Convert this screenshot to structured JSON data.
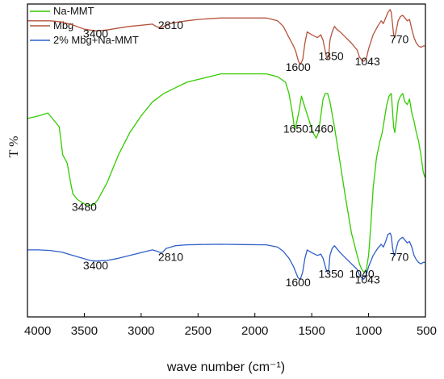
{
  "chart_data": {
    "type": "line",
    "xlabel": "wave number (cm⁻¹)",
    "ylabel": "T %",
    "xlim": [
      4000,
      500
    ],
    "x_reversed": true,
    "x_ticks": [
      4000,
      3500,
      3000,
      2500,
      2000,
      1500,
      1000,
      500
    ],
    "y_ticks_shown": false,
    "grid": false,
    "legend_position": "top-left",
    "series": [
      {
        "name": "Na-MMT",
        "color": "#33cc00",
        "points": [
          [
            4000,
            71
          ],
          [
            3900,
            72
          ],
          [
            3820,
            73
          ],
          [
            3760,
            70
          ],
          [
            3720,
            68
          ],
          [
            3690,
            58
          ],
          [
            3650,
            55
          ],
          [
            3620,
            48
          ],
          [
            3600,
            44
          ],
          [
            3560,
            42
          ],
          [
            3520,
            41
          ],
          [
            3480,
            40
          ],
          [
            3420,
            40
          ],
          [
            3380,
            42
          ],
          [
            3300,
            48
          ],
          [
            3200,
            58
          ],
          [
            3100,
            66
          ],
          [
            3000,
            72
          ],
          [
            2900,
            77
          ],
          [
            2800,
            80
          ],
          [
            2700,
            82
          ],
          [
            2600,
            84
          ],
          [
            2500,
            85
          ],
          [
            2400,
            86
          ],
          [
            2300,
            87
          ],
          [
            2200,
            87
          ],
          [
            2100,
            87
          ],
          [
            2000,
            87
          ],
          [
            1900,
            87
          ],
          [
            1800,
            86
          ],
          [
            1730,
            84
          ],
          [
            1700,
            80
          ],
          [
            1670,
            73
          ],
          [
            1650,
            67
          ],
          [
            1630,
            70
          ],
          [
            1610,
            74
          ],
          [
            1590,
            79
          ],
          [
            1560,
            75
          ],
          [
            1520,
            70
          ],
          [
            1490,
            66
          ],
          [
            1460,
            64
          ],
          [
            1440,
            66
          ],
          [
            1420,
            72
          ],
          [
            1400,
            78
          ],
          [
            1380,
            80
          ],
          [
            1360,
            80
          ],
          [
            1340,
            77
          ],
          [
            1300,
            68
          ],
          [
            1250,
            55
          ],
          [
            1200,
            42
          ],
          [
            1150,
            30
          ],
          [
            1100,
            22
          ],
          [
            1080,
            19
          ],
          [
            1060,
            17
          ],
          [
            1040,
            16
          ],
          [
            1020,
            17
          ],
          [
            1000,
            22
          ],
          [
            980,
            33
          ],
          [
            960,
            46
          ],
          [
            930,
            57
          ],
          [
            900,
            63
          ],
          [
            880,
            66
          ],
          [
            860,
            71
          ],
          [
            840,
            76
          ],
          [
            820,
            79
          ],
          [
            800,
            80
          ],
          [
            790,
            74
          ],
          [
            780,
            68
          ],
          [
            770,
            66
          ],
          [
            760,
            69
          ],
          [
            740,
            77
          ],
          [
            720,
            79
          ],
          [
            700,
            80
          ],
          [
            680,
            77
          ],
          [
            660,
            76
          ],
          [
            640,
            78
          ],
          [
            620,
            73
          ],
          [
            600,
            70
          ],
          [
            580,
            66
          ],
          [
            560,
            63
          ],
          [
            540,
            58
          ],
          [
            520,
            52
          ],
          [
            505,
            50
          ]
        ]
      },
      {
        "name": "Mbg",
        "color": "#b5533c",
        "points": [
          [
            4000,
            106
          ],
          [
            3800,
            106
          ],
          [
            3700,
            105.6
          ],
          [
            3600,
            104.5
          ],
          [
            3500,
            103
          ],
          [
            3400,
            102.4
          ],
          [
            3300,
            102.7
          ],
          [
            3200,
            103.4
          ],
          [
            3100,
            104
          ],
          [
            3000,
            104.4
          ],
          [
            2900,
            104.8
          ],
          [
            2870,
            104
          ],
          [
            2840,
            103.6
          ],
          [
            2810,
            103.7
          ],
          [
            2780,
            104.6
          ],
          [
            2700,
            105.4
          ],
          [
            2600,
            106
          ],
          [
            2500,
            106.5
          ],
          [
            2300,
            107
          ],
          [
            2100,
            107
          ],
          [
            1900,
            107
          ],
          [
            1800,
            106
          ],
          [
            1750,
            104
          ],
          [
            1700,
            100
          ],
          [
            1660,
            97
          ],
          [
            1640,
            95
          ],
          [
            1620,
            92
          ],
          [
            1610,
            91
          ],
          [
            1600,
            90.5
          ],
          [
            1580,
            92
          ],
          [
            1560,
            98
          ],
          [
            1540,
            102
          ],
          [
            1500,
            101
          ],
          [
            1450,
            100
          ],
          [
            1420,
            101
          ],
          [
            1400,
            99
          ],
          [
            1380,
            95
          ],
          [
            1370,
            93
          ],
          [
            1360,
            92.5
          ],
          [
            1350,
            94
          ],
          [
            1340,
            99
          ],
          [
            1320,
            102
          ],
          [
            1300,
            104
          ],
          [
            1280,
            103
          ],
          [
            1250,
            102
          ],
          [
            1200,
            100
          ],
          [
            1150,
            98
          ],
          [
            1100,
            95.5
          ],
          [
            1080,
            93
          ],
          [
            1060,
            92
          ],
          [
            1043,
            91.5
          ],
          [
            1020,
            92.5
          ],
          [
            1000,
            96
          ],
          [
            960,
            101
          ],
          [
            920,
            104
          ],
          [
            890,
            106
          ],
          [
            870,
            105
          ],
          [
            850,
            107
          ],
          [
            830,
            109
          ],
          [
            810,
            110
          ],
          [
            800,
            109
          ],
          [
            790,
            105
          ],
          [
            780,
            101
          ],
          [
            770,
            100
          ],
          [
            760,
            102
          ],
          [
            740,
            106
          ],
          [
            720,
            107.5
          ],
          [
            700,
            108
          ],
          [
            680,
            107
          ],
          [
            660,
            106
          ],
          [
            640,
            106.5
          ],
          [
            620,
            103
          ],
          [
            600,
            100
          ],
          [
            580,
            98
          ],
          [
            560,
            97
          ],
          [
            540,
            96.5
          ],
          [
            520,
            97
          ],
          [
            505,
            97
          ]
        ]
      },
      {
        "name": "2% Mbg+Na-MMT",
        "color": "#2f5fc8",
        "points": [
          [
            4000,
            24
          ],
          [
            3900,
            24
          ],
          [
            3800,
            23.8
          ],
          [
            3700,
            23.2
          ],
          [
            3600,
            22
          ],
          [
            3500,
            20.8
          ],
          [
            3450,
            20.2
          ],
          [
            3400,
            20
          ],
          [
            3300,
            20.2
          ],
          [
            3200,
            21
          ],
          [
            3100,
            22
          ],
          [
            3000,
            23
          ],
          [
            2900,
            24
          ],
          [
            2860,
            23.5
          ],
          [
            2830,
            23
          ],
          [
            2810,
            23.2
          ],
          [
            2780,
            24.5
          ],
          [
            2700,
            25.5
          ],
          [
            2600,
            25.8
          ],
          [
            2500,
            25.9
          ],
          [
            2300,
            26
          ],
          [
            2100,
            25.9
          ],
          [
            1900,
            25.8
          ],
          [
            1800,
            25
          ],
          [
            1750,
            23.5
          ],
          [
            1700,
            21
          ],
          [
            1660,
            18
          ],
          [
            1640,
            16
          ],
          [
            1620,
            14
          ],
          [
            1600,
            13.5
          ],
          [
            1580,
            16
          ],
          [
            1560,
            21
          ],
          [
            1540,
            24
          ],
          [
            1500,
            23
          ],
          [
            1450,
            22
          ],
          [
            1420,
            22.5
          ],
          [
            1400,
            21
          ],
          [
            1380,
            18
          ],
          [
            1370,
            16.5
          ],
          [
            1360,
            16
          ],
          [
            1350,
            17
          ],
          [
            1340,
            22
          ],
          [
            1320,
            24.5
          ],
          [
            1300,
            25.5
          ],
          [
            1280,
            24.5
          ],
          [
            1250,
            23
          ],
          [
            1200,
            21
          ],
          [
            1150,
            19
          ],
          [
            1100,
            17
          ],
          [
            1080,
            15
          ],
          [
            1060,
            14
          ],
          [
            1043,
            13.5
          ],
          [
            1020,
            15
          ],
          [
            1000,
            18
          ],
          [
            960,
            22
          ],
          [
            920,
            24.5
          ],
          [
            890,
            26
          ],
          [
            870,
            25
          ],
          [
            850,
            27
          ],
          [
            830,
            29.5
          ],
          [
            810,
            30
          ],
          [
            800,
            29
          ],
          [
            790,
            25
          ],
          [
            780,
            22.5
          ],
          [
            770,
            22
          ],
          [
            760,
            24
          ],
          [
            740,
            27
          ],
          [
            720,
            28
          ],
          [
            700,
            28.5
          ],
          [
            680,
            27.5
          ],
          [
            660,
            26.5
          ],
          [
            640,
            27
          ],
          [
            620,
            25
          ],
          [
            600,
            22
          ],
          [
            580,
            20.5
          ],
          [
            560,
            19.5
          ],
          [
            540,
            19
          ],
          [
            520,
            19.5
          ],
          [
            505,
            19.5
          ]
        ]
      }
    ],
    "annotations": [
      {
        "text": "3400",
        "x": 3400,
        "y": 100
      },
      {
        "text": "2810",
        "x": 2740,
        "y": 103
      },
      {
        "text": "1600",
        "x": 1620,
        "y": 88
      },
      {
        "text": "1350",
        "x": 1330,
        "y": 92
      },
      {
        "text": "1043",
        "x": 1010,
        "y": 90
      },
      {
        "text": "770",
        "x": 730,
        "y": 98
      },
      {
        "text": "1650",
        "x": 1640,
        "y": 66
      },
      {
        "text": "1460",
        "x": 1420,
        "y": 66
      },
      {
        "text": "3480",
        "x": 3500,
        "y": 38
      },
      {
        "text": "1040",
        "x": 1060,
        "y": 14
      },
      {
        "text": "2810",
        "x": 2740,
        "y": 20
      },
      {
        "text": "3400",
        "x": 3400,
        "y": 17
      },
      {
        "text": "1600",
        "x": 1620,
        "y": 11
      },
      {
        "text": "1350",
        "x": 1330,
        "y": 14
      },
      {
        "text": "1043",
        "x": 1010,
        "y": 12
      },
      {
        "text": "770",
        "x": 730,
        "y": 20
      }
    ]
  }
}
